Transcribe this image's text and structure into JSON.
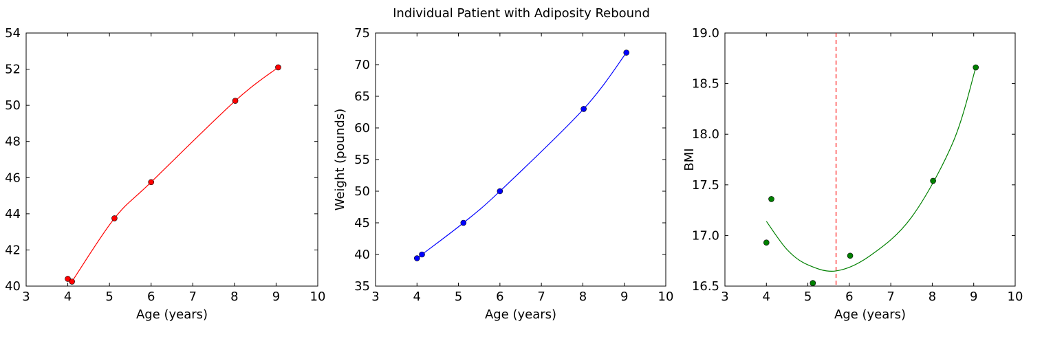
{
  "figure": {
    "title": "Individual Patient with Adiposity Rebound"
  },
  "chart_data": [
    {
      "type": "scatter",
      "xlabel": "Age (years)",
      "ylabel": "",
      "xlim": [
        3,
        10
      ],
      "ylim": [
        40,
        54
      ],
      "xticks": [
        3,
        4,
        5,
        6,
        7,
        8,
        9,
        10
      ],
      "yticks": [
        40,
        42,
        44,
        46,
        48,
        50,
        52,
        54
      ],
      "color": "#ff0000",
      "grid": false,
      "series": [
        {
          "kind": "points",
          "x": [
            4.0,
            4.1,
            5.12,
            6.0,
            8.02,
            9.05
          ],
          "y": [
            40.4,
            40.25,
            43.75,
            45.75,
            50.25,
            52.1
          ]
        },
        {
          "kind": "line",
          "x": [
            4.1,
            5.12,
            6.0,
            8.02,
            9.05
          ],
          "y": [
            40.25,
            43.75,
            45.75,
            50.25,
            52.1
          ]
        }
      ]
    },
    {
      "type": "scatter",
      "xlabel": "Age (years)",
      "ylabel": "Weight (pounds)",
      "xlim": [
        3,
        10
      ],
      "ylim": [
        35,
        75
      ],
      "xticks": [
        3,
        4,
        5,
        6,
        7,
        8,
        9,
        10
      ],
      "yticks": [
        35,
        40,
        45,
        50,
        55,
        60,
        65,
        70,
        75
      ],
      "color": "#0000ff",
      "grid": false,
      "series": [
        {
          "kind": "points",
          "x": [
            4.0,
            4.12,
            5.12,
            6.0,
            8.02,
            9.05
          ],
          "y": [
            39.4,
            40.0,
            45.0,
            50.0,
            63.0,
            71.9
          ]
        },
        {
          "kind": "line",
          "x": [
            4.0,
            4.12,
            5.12,
            6.0,
            8.02,
            9.05
          ],
          "y": [
            39.4,
            40.0,
            45.0,
            50.0,
            63.0,
            71.9
          ]
        }
      ]
    },
    {
      "type": "scatter",
      "xlabel": "Age (years)",
      "ylabel": "BMI",
      "xlim": [
        3,
        10
      ],
      "ylim": [
        16.5,
        19.0
      ],
      "xticks": [
        3,
        4,
        5,
        6,
        7,
        8,
        9,
        10
      ],
      "yticks": [
        16.5,
        17.0,
        17.5,
        18.0,
        18.5,
        19.0
      ],
      "tick_decimals": 1,
      "color": "#008000",
      "grid": false,
      "vline": {
        "x": 5.68,
        "color": "#ff0000",
        "style": "dashed"
      },
      "series": [
        {
          "kind": "points",
          "x": [
            4.0,
            4.12,
            5.12,
            6.02,
            8.02,
            9.05
          ],
          "y": [
            16.93,
            17.36,
            16.53,
            16.8,
            17.54,
            18.66
          ]
        },
        {
          "kind": "line",
          "x": [
            4.0,
            4.5,
            5.0,
            5.68,
            6.5,
            7.5,
            8.5,
            9.05
          ],
          "y": [
            17.14,
            16.86,
            16.71,
            16.65,
            16.8,
            17.18,
            17.92,
            18.66
          ]
        }
      ]
    }
  ]
}
